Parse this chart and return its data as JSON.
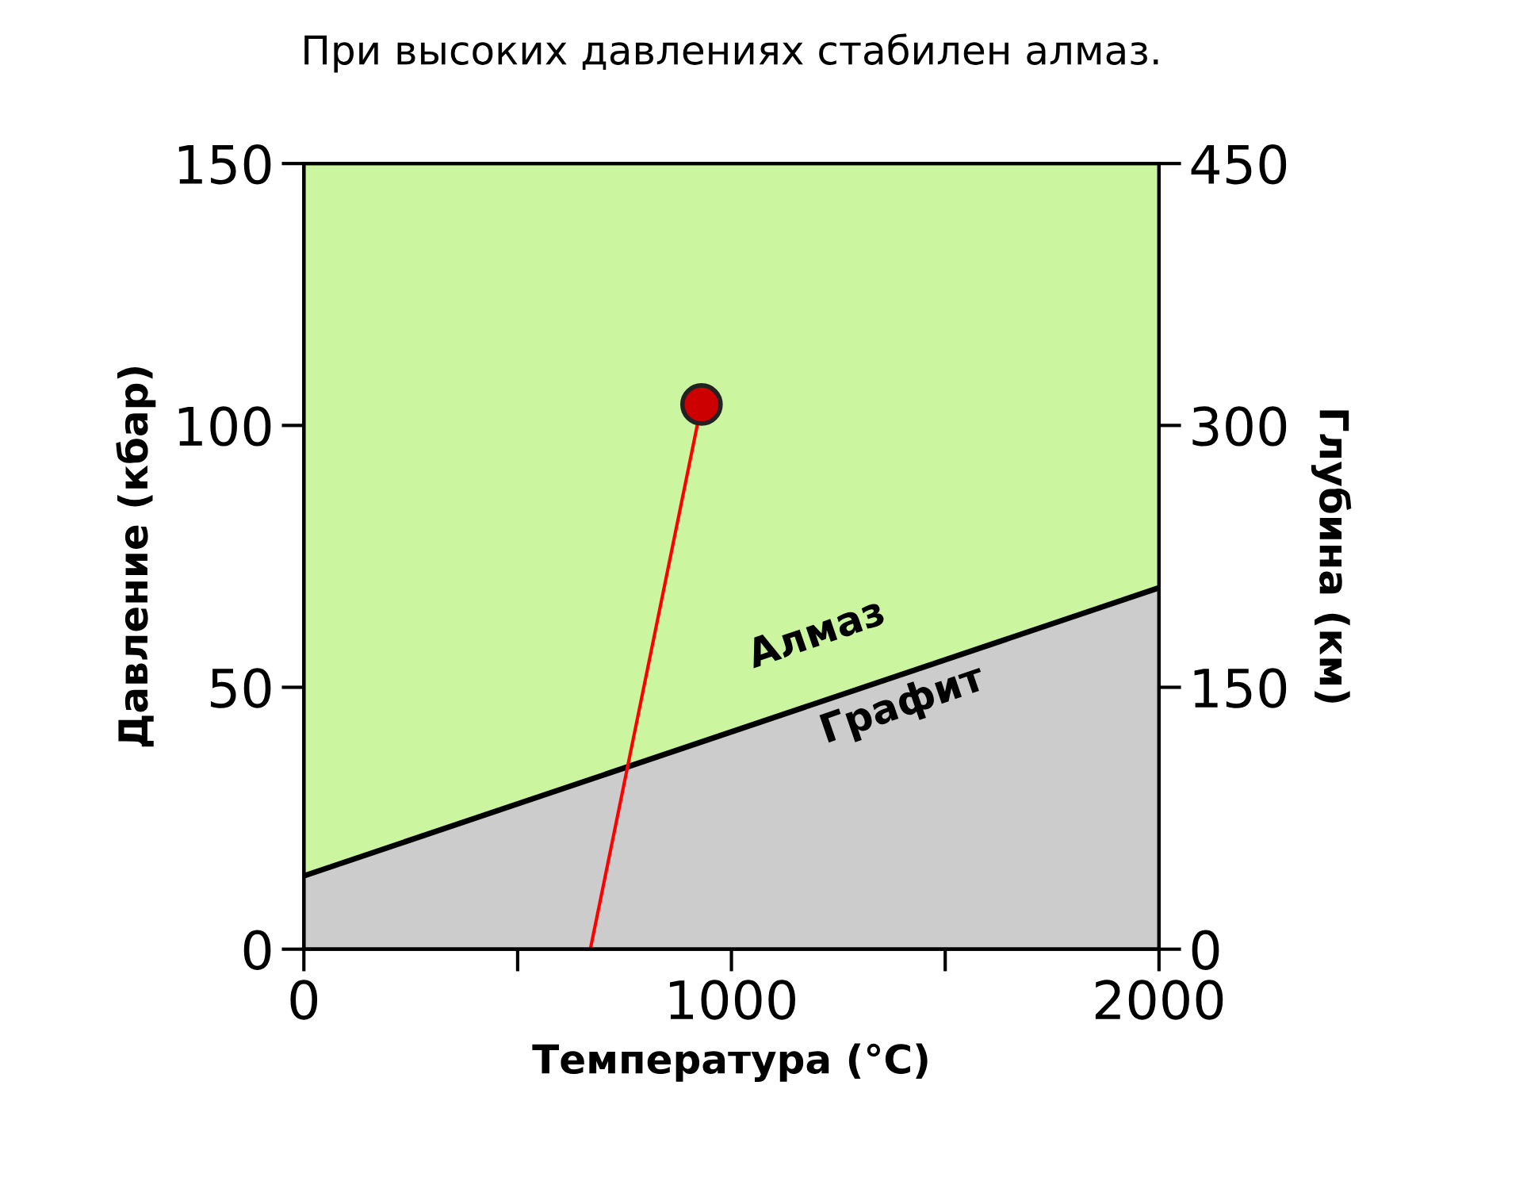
{
  "chart_data": {
    "type": "line",
    "title": "При высоких давлениях стабилен алмаз.",
    "xlabel": "Температура (°C)",
    "ylabel": "Давление (кбар)",
    "y2label": "Глубина (км)",
    "xlim": [
      0,
      2000
    ],
    "xticks": [
      0,
      {
        "value": 500,
        "label": null
      },
      1000,
      {
        "value": 1500,
        "label": null
      },
      2000
    ],
    "ylim": [
      0,
      150
    ],
    "yticks": [
      0,
      50,
      100,
      150
    ],
    "y2lim": [
      0,
      450
    ],
    "y2ticks": [
      0,
      150,
      300,
      450
    ],
    "bands": [
      {
        "axis": "y",
        "from": 0,
        "to": 150,
        "color": "#ccf5a0"
      }
    ],
    "series": [
      {
        "type": "area",
        "x": [
          0,
          2000
        ],
        "values": [
          14,
          69
        ],
        "color": "#cccccc"
      },
      {
        "x": [
          670,
          930
        ],
        "values": [
          0,
          104
        ],
        "color": "#ff0000"
      },
      {
        "type": "scatter",
        "x": [
          930
        ],
        "values": [
          104
        ],
        "color": "#cc0000",
        "marker": "circle"
      }
    ],
    "annotations": [
      "Алмаз",
      "Графит"
    ],
    "grid": false,
    "legend": false
  }
}
